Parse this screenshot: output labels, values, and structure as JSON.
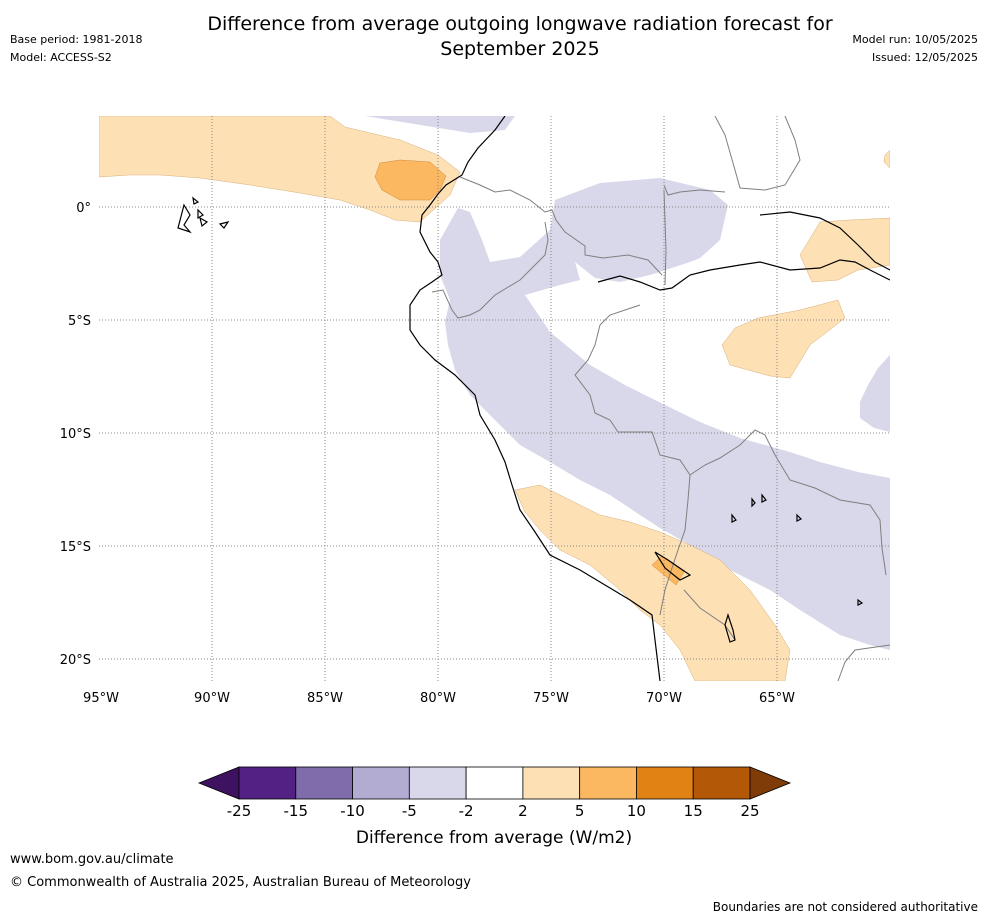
{
  "header": {
    "title_line1": "Difference from average outgoing longwave radiation forecast for",
    "title_line2": "September 2025",
    "base_period": "Base period: 1981-2018",
    "model": "Model: ACCESS-S2",
    "model_run": "Model run: 10/05/2025",
    "issued": "Issued: 12/05/2025"
  },
  "map": {
    "lat_labels": [
      "0°",
      "5°S",
      "10°S",
      "15°S",
      "20°S"
    ],
    "lon_labels": [
      "95°W",
      "90°W",
      "85°W",
      "80°W",
      "75°W",
      "70°W",
      "65°W"
    ],
    "colors": {
      "n10_n5": "#d8d8ea",
      "p2_p5": "#fde0b4",
      "p5_p10": "#fbb861",
      "coast": "#000000",
      "border": "#7f7f7f",
      "grid": "#888888"
    }
  },
  "colorbar": {
    "ticks": [
      "-25",
      "-15",
      "-10",
      "-5",
      "-2",
      "2",
      "5",
      "10",
      "15",
      "25"
    ],
    "colors": [
      "#3e1260",
      "#532184",
      "#7e6daa",
      "#b2abd2",
      "#d8d8ea",
      "#ffffff",
      "#fde0b4",
      "#fbb861",
      "#e08214",
      "#b35806",
      "#7f3b08"
    ],
    "label": "Difference from average (W/m2)"
  },
  "footer": {
    "website": "www.bom.gov.au/climate",
    "copyright": "© Commonwealth of Australia 2025, Australian Bureau of Meteorology",
    "disclaimer": "Boundaries are not considered authoritative"
  }
}
